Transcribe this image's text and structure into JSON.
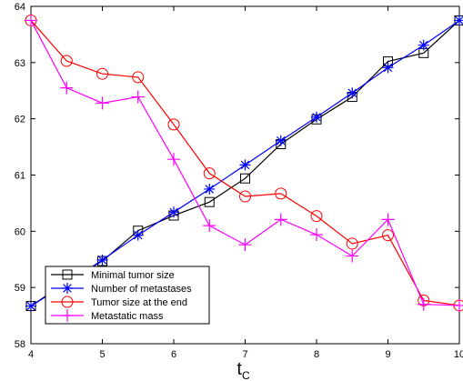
{
  "chart_data": {
    "type": "line",
    "xlabel_main": "t",
    "xlabel_sub": "C",
    "ylabel": "",
    "xlim": [
      4,
      10
    ],
    "ylim": [
      58,
      64
    ],
    "xticks": [
      4,
      5,
      6,
      7,
      8,
      9,
      10
    ],
    "yticks": [
      58,
      59,
      60,
      61,
      62,
      63,
      64
    ],
    "grid": false,
    "legend_position": "bottom-left",
    "x": [
      4,
      4.5,
      5,
      5.5,
      6,
      6.5,
      7,
      7.5,
      8,
      8.5,
      9,
      9.5,
      10
    ],
    "series": [
      {
        "name": "Minimal tumor size",
        "color": "#000000",
        "marker": "square",
        "values": [
          58.67,
          59.1,
          59.47,
          60.01,
          60.28,
          60.52,
          60.94,
          61.55,
          61.99,
          62.39,
          63.02,
          63.17,
          63.75
        ]
      },
      {
        "name": "Number of metastases",
        "color": "#0000ff",
        "marker": "star",
        "values": [
          58.67,
          59.07,
          59.49,
          59.93,
          60.34,
          60.75,
          61.18,
          61.61,
          62.03,
          62.46,
          62.91,
          63.31,
          63.75
        ]
      },
      {
        "name": "Tumor size at the end",
        "color": "#ff0000",
        "marker": "circle",
        "values": [
          63.75,
          63.03,
          62.8,
          62.74,
          61.9,
          61.03,
          60.62,
          60.67,
          60.27,
          59.78,
          59.93,
          58.77,
          58.68
        ]
      },
      {
        "name": "Metastatic mass",
        "color": "#ff00ff",
        "marker": "plus",
        "values": [
          63.75,
          62.55,
          62.28,
          62.39,
          61.28,
          60.1,
          59.76,
          60.21,
          59.94,
          59.56,
          60.21,
          58.7,
          58.68
        ]
      }
    ]
  }
}
